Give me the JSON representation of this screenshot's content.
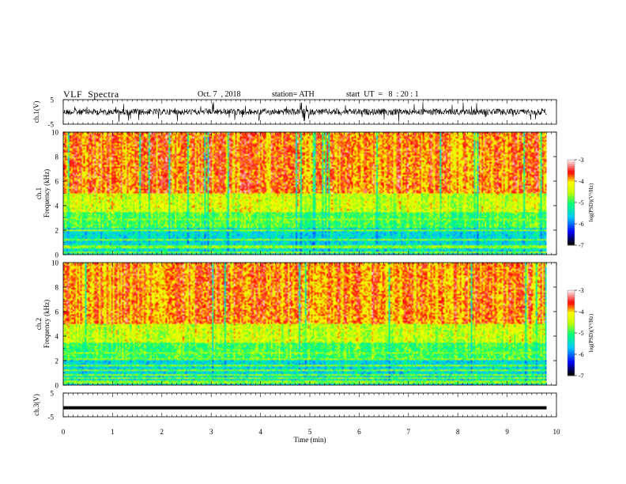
{
  "header": {
    "title": "VLF  Spectra",
    "date": "Oct. 7  , 2018",
    "station": "station= ATH",
    "start": "start  UT  =   8  : 20 : 1"
  },
  "chart_data": [
    {
      "type": "line",
      "panel": "ch1-waveform",
      "ylabel": "ch.1(V)",
      "ylim": [
        -5,
        5
      ],
      "yticks": [
        "5",
        "-5"
      ],
      "xlim": [
        0,
        10
      ],
      "description_level": "noisy waveform centered near 0 V"
    },
    {
      "type": "heatmap",
      "panel": "ch1-spectrogram",
      "ylabel": "ch.1\nFrequency (kHz)",
      "ylabel_lines": [
        "ch.1",
        "Frequency  (kHz)"
      ],
      "ylim": [
        0,
        10
      ],
      "yticks": [
        "0",
        "2",
        "4",
        "6",
        "8",
        "10"
      ],
      "xlim": [
        0,
        9.8
      ],
      "colorbar": {
        "label": "log(PSD)(V²/Hz)",
        "range": [
          -7,
          -3
        ],
        "ticks": [
          "-3",
          "-4",
          "-5",
          "-6",
          "-7"
        ]
      }
    },
    {
      "type": "heatmap",
      "panel": "ch2-spectrogram",
      "ylabel_lines": [
        "ch.2",
        "Frequency  (kHz)"
      ],
      "ylim": [
        0,
        10
      ],
      "yticks": [
        "0",
        "2",
        "4",
        "6",
        "8",
        "10"
      ],
      "xlim": [
        0,
        9.8
      ],
      "colorbar": {
        "label": "log(PSD)(V²/Hz)",
        "range": [
          -7,
          -3
        ],
        "ticks": [
          "-3",
          "-4",
          "-5",
          "-6",
          "-7"
        ]
      }
    },
    {
      "type": "line",
      "panel": "ch3-waveform",
      "ylabel": "ch.3(V)",
      "ylim": [
        -5,
        5
      ],
      "yticks": [
        "5",
        "-5"
      ],
      "x": [
        0,
        9.8
      ],
      "y": [
        -1.2,
        -1.2
      ]
    }
  ],
  "xaxis": {
    "label": "Time  (min)",
    "ticks": [
      "0",
      "1",
      "2",
      "3",
      "4",
      "5",
      "6",
      "7",
      "8",
      "9",
      "10"
    ],
    "range": [
      0,
      10
    ]
  },
  "colors": {
    "scale": [
      "#000000",
      "#0000ff",
      "#00c8ff",
      "#00ff80",
      "#d0ff00",
      "#ffff00",
      "#ff0000",
      "#ffffff"
    ]
  }
}
